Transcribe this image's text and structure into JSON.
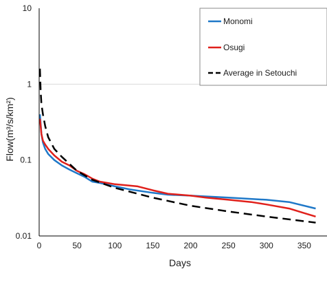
{
  "chart_data": {
    "type": "line",
    "title": "",
    "xlabel": "Days",
    "ylabel": "Flow(m³/s/km²)",
    "y_scale": "log",
    "xlim": [
      0,
      365
    ],
    "ylim": [
      0.01,
      10
    ],
    "x_ticks": [
      "0",
      "50",
      "100",
      "150",
      "200",
      "250",
      "300",
      "350"
    ],
    "y_ticks": [
      "0.01",
      "0.1",
      "1",
      "10"
    ],
    "grid": "major horizontal at 1 only",
    "legend_position": "top-right",
    "series": [
      {
        "name": "Monomi",
        "color": "#1f78c8",
        "style": "solid",
        "x": [
          1,
          2,
          3,
          5,
          8,
          12,
          20,
          30,
          40,
          50,
          60,
          70,
          80,
          100,
          120,
          150,
          170,
          200,
          250,
          300,
          330,
          365
        ],
        "y": [
          0.4,
          0.3,
          0.22,
          0.17,
          0.14,
          0.12,
          0.1,
          0.085,
          0.075,
          0.067,
          0.06,
          0.052,
          0.05,
          0.045,
          0.041,
          0.037,
          0.035,
          0.034,
          0.032,
          0.03,
          0.028,
          0.023
        ]
      },
      {
        "name": "Osugi",
        "color": "#e0201b",
        "style": "solid",
        "x": [
          1,
          2,
          3,
          5,
          8,
          12,
          20,
          30,
          40,
          50,
          60,
          70,
          80,
          100,
          130,
          150,
          170,
          200,
          220,
          250,
          280,
          300,
          330,
          350,
          365
        ],
        "y": [
          0.35,
          0.28,
          0.22,
          0.18,
          0.16,
          0.14,
          0.115,
          0.095,
          0.085,
          0.072,
          0.065,
          0.057,
          0.052,
          0.048,
          0.045,
          0.04,
          0.036,
          0.034,
          0.032,
          0.03,
          0.028,
          0.026,
          0.023,
          0.02,
          0.018
        ]
      },
      {
        "name": "Average in Setouchi",
        "color": "#000000",
        "style": "dashed",
        "x": [
          1,
          2,
          3,
          5,
          8,
          12,
          20,
          30,
          50,
          70,
          100,
          150,
          200,
          250,
          300,
          365
        ],
        "y": [
          1.6,
          0.8,
          0.55,
          0.4,
          0.28,
          0.2,
          0.14,
          0.11,
          0.072,
          0.055,
          0.043,
          0.032,
          0.025,
          0.021,
          0.018,
          0.015
        ]
      }
    ]
  }
}
